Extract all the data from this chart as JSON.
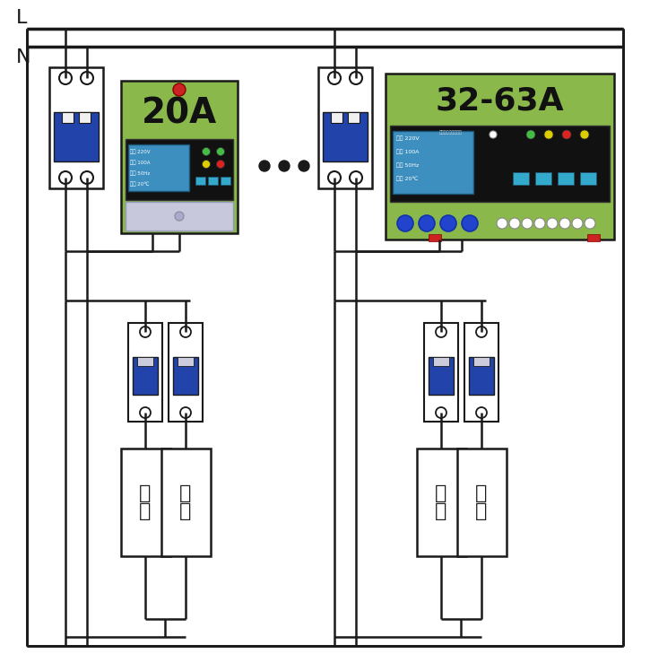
{
  "bg_color": "#ffffff",
  "lc": "#1a1a1a",
  "title_L": "L",
  "title_N": "N",
  "breaker_handle": "#2244aa",
  "device_green": "#8ab84a",
  "device_red": "#cc2222",
  "display_bg": "#3d8fc0",
  "display_text_color": "#ffffff",
  "dots_color": "#1a1a1a",
  "load_text_line1": "负",
  "load_text_line2": "载",
  "label_20A": "20A",
  "label_63A": "32-63A",
  "led_green": "#44bb44",
  "led_yellow": "#ddcc00",
  "led_red": "#dd2222",
  "led_orange": "#ee8800",
  "btn_color": "#33aacc",
  "blue_dot": "#2244cc",
  "white_circle": "#ffffff",
  "gray_panel": "#c8c8dd",
  "gray_screw": "#aaaaaa"
}
